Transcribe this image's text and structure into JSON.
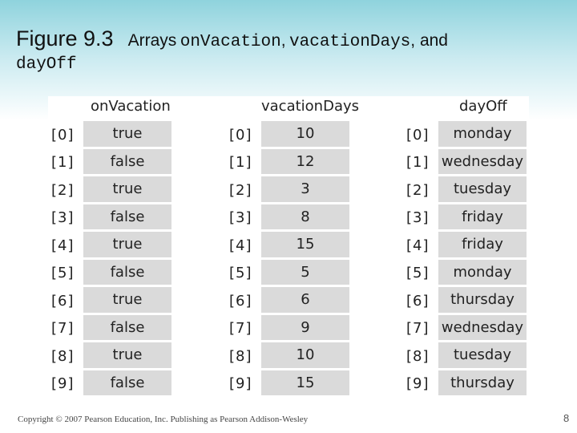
{
  "title": {
    "figure_label": "Figure 9.3",
    "prefix": "Arrays",
    "name1": "onVacation",
    "sep1": ",",
    "name2": "vacationDays",
    "sep2": ", and",
    "name3": "dayOff"
  },
  "figure": {
    "headings": [
      "onVacation",
      "vacationDays",
      "dayOff"
    ],
    "indices": [
      "[0]",
      "[1]",
      "[2]",
      "[3]",
      "[4]",
      "[5]",
      "[6]",
      "[7]",
      "[8]",
      "[9]"
    ],
    "arrays": [
      [
        "true",
        "false",
        "true",
        "false",
        "true",
        "false",
        "true",
        "false",
        "true",
        "false"
      ],
      [
        "10",
        "12",
        "3",
        "8",
        "15",
        "5",
        "6",
        "9",
        "10",
        "15"
      ],
      [
        "monday",
        "wednesday",
        "tuesday",
        "friday",
        "friday",
        "monday",
        "thursday",
        "wednesday",
        "tuesday",
        "thursday"
      ]
    ]
  },
  "footer": {
    "copyright": "Copyright © 2007 Pearson Education, Inc. Publishing as Pearson Addison-Wesley",
    "page_number": "8"
  }
}
